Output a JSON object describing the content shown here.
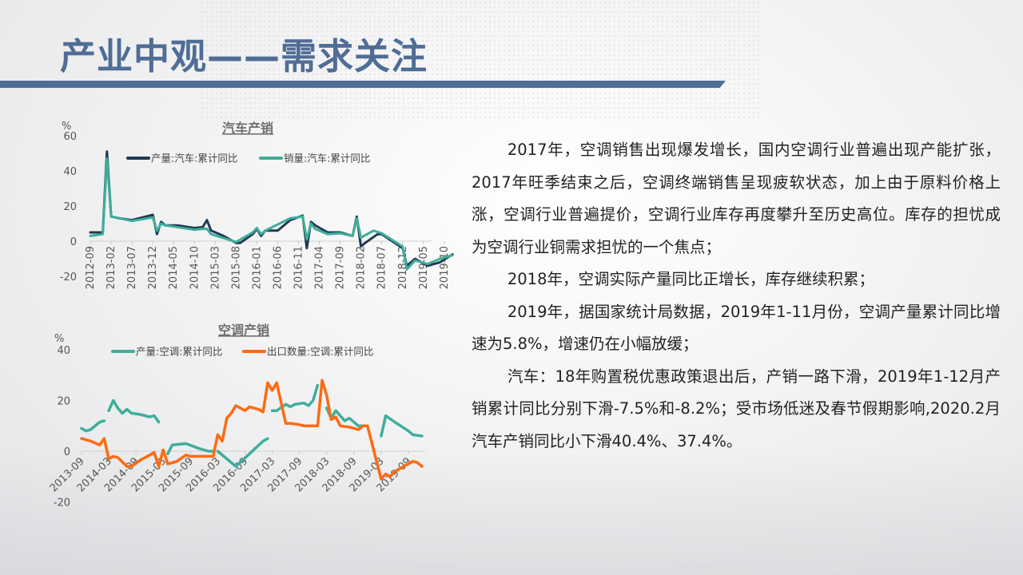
{
  "title": "产业中观——需求关注",
  "colors": {
    "title": "#4f6d95",
    "auto_production": "#1f3a56",
    "auto_sales": "#3fae9a",
    "ac_production": "#3fae9a",
    "ac_export": "#ff6a10"
  },
  "paragraphs": [
    "2017年，空调销售出现爆发增长，国内空调行业普遍出现产能扩张，2017年旺季结束之后，空调终端销售呈现疲软状态，加上由于原料价格上涨，空调行业普遍提价，空调行业库存再度攀升至历史高位。库存的担忧成为空调行业铜需求担忧的一个焦点；",
    "2018年，空调实际产量同比正增长，库存继续积累；",
    "2019年，据国家统计局数据，2019年1-11月份，空调产量累计同比增速为5.8%，增速仍在小幅放缓；",
    "汽车：18年购置税优惠政策退出后，产销一路下滑，2019年1-12月产销累计同比分别下滑-7.5%和-8.2%；受市场低迷及春节假期影响,2020.2月汽车产销同比小下滑40.4%、37.4%。"
  ],
  "chart_data": [
    {
      "type": "line",
      "title": "汽车产销",
      "ylabel": "%",
      "ylim": [
        -20,
        60
      ],
      "yticks": [
        "60",
        "40",
        "20",
        "0",
        "-20"
      ],
      "xticks": [
        "2012-09",
        "2013-02",
        "2013-07",
        "2013-12",
        "2014-05",
        "2014-10",
        "2015-03",
        "2015-08",
        "2016-01",
        "2016-06",
        "2016-11",
        "2017-04",
        "2017-09",
        "2018-02",
        "2018-07",
        "2018-12",
        "2019-05",
        "2019-10"
      ],
      "legend": "top",
      "series": [
        {
          "name": "产量:汽车:累计同比",
          "color": "#1f3a56",
          "points": [
            [
              "2012-09",
              5
            ],
            [
              "2012-12",
              5
            ],
            [
              "2013-01",
              51
            ],
            [
              "2013-02",
              14
            ],
            [
              "2013-04",
              13
            ],
            [
              "2013-07",
              12
            ],
            [
              "2013-12",
              15
            ],
            [
              "2014-01",
              4
            ],
            [
              "2014-02",
              11
            ],
            [
              "2014-03",
              9
            ],
            [
              "2014-06",
              9
            ],
            [
              "2014-10",
              7.5
            ],
            [
              "2014-12",
              8
            ],
            [
              "2015-01",
              12
            ],
            [
              "2015-02",
              6
            ],
            [
              "2015-05",
              3
            ],
            [
              "2015-08",
              -1
            ],
            [
              "2015-09",
              -1
            ],
            [
              "2015-12",
              4
            ],
            [
              "2016-01",
              7
            ],
            [
              "2016-02",
              3
            ],
            [
              "2016-03",
              6
            ],
            [
              "2016-06",
              6
            ],
            [
              "2016-09",
              12
            ],
            [
              "2016-12",
              14.5
            ],
            [
              "2017-01",
              -4
            ],
            [
              "2017-02",
              11
            ],
            [
              "2017-03",
              9
            ],
            [
              "2017-06",
              5
            ],
            [
              "2017-09",
              5
            ],
            [
              "2017-12",
              3
            ],
            [
              "2018-01",
              14
            ],
            [
              "2018-02",
              -3
            ],
            [
              "2018-03",
              -1
            ],
            [
              "2018-06",
              4
            ],
            [
              "2018-07",
              4
            ],
            [
              "2018-12",
              -4
            ],
            [
              "2019-01",
              -14
            ],
            [
              "2019-03",
              -10
            ],
            [
              "2019-06",
              -14
            ],
            [
              "2019-09",
              -12
            ],
            [
              "2019-12",
              -7.5
            ]
          ]
        },
        {
          "name": "销量:汽车:累计同比",
          "color": "#3fae9a",
          "points": [
            [
              "2012-09",
              3
            ],
            [
              "2012-12",
              4
            ],
            [
              "2013-01",
              47
            ],
            [
              "2013-02",
              14
            ],
            [
              "2013-07",
              11.5
            ],
            [
              "2013-12",
              13.5
            ],
            [
              "2014-01",
              6
            ],
            [
              "2014-02",
              10
            ],
            [
              "2014-03",
              9
            ],
            [
              "2014-10",
              6.5
            ],
            [
              "2014-12",
              7
            ],
            [
              "2015-01",
              7
            ],
            [
              "2015-02",
              4
            ],
            [
              "2015-08",
              -0.5
            ],
            [
              "2015-12",
              5
            ],
            [
              "2016-01",
              7.5
            ],
            [
              "2016-02",
              4
            ],
            [
              "2016-03",
              6
            ],
            [
              "2016-09",
              13
            ],
            [
              "2016-12",
              14
            ],
            [
              "2017-01",
              1
            ],
            [
              "2017-02",
              10
            ],
            [
              "2017-03",
              7
            ],
            [
              "2017-06",
              4
            ],
            [
              "2017-09",
              4.5
            ],
            [
              "2017-12",
              3
            ],
            [
              "2018-01",
              13
            ],
            [
              "2018-02",
              2
            ],
            [
              "2018-05",
              6
            ],
            [
              "2018-07",
              4.5
            ],
            [
              "2018-12",
              -3
            ],
            [
              "2019-01",
              -16
            ],
            [
              "2019-03",
              -11
            ],
            [
              "2019-06",
              -13
            ],
            [
              "2019-09",
              -10
            ],
            [
              "2019-12",
              -8
            ]
          ]
        }
      ]
    },
    {
      "type": "line",
      "title": "空调产销",
      "ylabel": "%",
      "ylim": [
        -20,
        40
      ],
      "yticks": [
        "40",
        "20",
        "0",
        "-20"
      ],
      "xticks": [
        "2013-09",
        "2014-03",
        "2014-09",
        "2015-03",
        "2015-09",
        "2016-03",
        "2016-09",
        "2017-03",
        "2017-09",
        "2018-03",
        "2018-09",
        "2019-03",
        "2019-09"
      ],
      "legend": "top",
      "series": [
        {
          "name": "产量:空调:累计同比",
          "color": "#3fae9a",
          "segments": [
            [
              [
                "2013-09",
                9
              ],
              [
                "2013-10",
                8
              ],
              [
                "2013-11",
                8.5
              ],
              [
                "2014-01",
                11.5
              ],
              [
                "2014-02",
                12
              ]
            ],
            [
              [
                "2014-03",
                16
              ],
              [
                "2014-04",
                20
              ],
              [
                "2014-05",
                17
              ],
              [
                "2014-06",
                15
              ],
              [
                "2014-07",
                16.5
              ],
              [
                "2014-08",
                15
              ],
              [
                "2014-10",
                14.5
              ],
              [
                "2014-12",
                13.5
              ],
              [
                "2015-01",
                14
              ],
              [
                "2015-02",
                11.5
              ]
            ],
            [
              [
                "2015-04",
                -1
              ],
              [
                "2015-05",
                2.5
              ],
              [
                "2015-08",
                3
              ],
              [
                "2015-11",
                1
              ],
              [
                "2016-01",
                0
              ],
              [
                "2016-02",
                0
              ]
            ],
            [
              [
                "2016-03",
                0
              ],
              [
                "2016-05",
                -3
              ],
              [
                "2016-07",
                -6
              ],
              [
                "2016-10",
                -1
              ],
              [
                "2017-01",
                4
              ],
              [
                "2017-02",
                5
              ]
            ],
            [
              [
                "2017-03",
                16
              ],
              [
                "2017-04",
                16
              ],
              [
                "2017-06",
                18.5
              ],
              [
                "2017-07",
                17.5
              ],
              [
                "2017-08",
                18.5
              ],
              [
                "2017-10",
                19
              ],
              [
                "2017-11",
                18
              ],
              [
                "2017-12",
                20
              ],
              [
                "2018-01",
                26
              ]
            ],
            [
              [
                "2018-03",
                17
              ],
              [
                "2018-04",
                13
              ],
              [
                "2018-05",
                16
              ],
              [
                "2018-07",
                12
              ],
              [
                "2018-08",
                13
              ],
              [
                "2018-10",
                10
              ],
              [
                "2018-11",
                10
              ]
            ],
            [
              [
                "2019-03",
                6
              ],
              [
                "2019-04",
                14
              ],
              [
                "2019-06",
                11.5
              ],
              [
                "2019-09",
                8
              ],
              [
                "2019-10",
                6.5
              ],
              [
                "2019-12",
                6
              ]
            ]
          ]
        },
        {
          "name": "出口数量:空调:累计同比",
          "color": "#ff6a10",
          "segments": [
            [
              [
                "2013-09",
                5
              ],
              [
                "2013-11",
                4
              ],
              [
                "2014-01",
                2.5
              ],
              [
                "2014-02",
                5
              ],
              [
                "2014-03",
                -3
              ],
              [
                "2014-04",
                -2
              ],
              [
                "2014-05",
                -2.5
              ],
              [
                "2014-07",
                -6
              ],
              [
                "2014-08",
                -6
              ],
              [
                "2014-10",
                -3.5
              ],
              [
                "2014-12",
                -1.5
              ],
              [
                "2015-01",
                -0.5
              ],
              [
                "2015-02",
                -6
              ],
              [
                "2015-03",
                0.5
              ],
              [
                "2015-04",
                -5
              ],
              [
                "2015-06",
                -4
              ],
              [
                "2015-08",
                -1.5
              ],
              [
                "2015-09",
                -2
              ],
              [
                "2016-01",
                -2
              ],
              [
                "2016-02",
                -2
              ],
              [
                "2016-03",
                6.5
              ],
              [
                "2016-04",
                4
              ],
              [
                "2016-05",
                13
              ],
              [
                "2016-06",
                15
              ],
              [
                "2016-07",
                18
              ],
              [
                "2016-08",
                17
              ],
              [
                "2016-09",
                16
              ],
              [
                "2016-10",
                17.5
              ],
              [
                "2016-12",
                16.5
              ],
              [
                "2017-01",
                15.5
              ],
              [
                "2017-02",
                27
              ],
              [
                "2017-03",
                24
              ],
              [
                "2017-04",
                27
              ],
              [
                "2017-06",
                11
              ],
              [
                "2017-07",
                11
              ],
              [
                "2017-09",
                10.5
              ],
              [
                "2017-10",
                10
              ],
              [
                "2017-12",
                10
              ],
              [
                "2018-01",
                10
              ],
              [
                "2018-02",
                28
              ],
              [
                "2018-03",
                22
              ],
              [
                "2018-04",
                12.5
              ],
              [
                "2018-05",
                13.5
              ],
              [
                "2018-06",
                10
              ],
              [
                "2018-08",
                9.5
              ],
              [
                "2018-10",
                8.5
              ],
              [
                "2018-11",
                10
              ],
              [
                "2018-12",
                10
              ],
              [
                "2019-03",
                -11
              ],
              [
                "2019-04",
                -9
              ],
              [
                "2019-05",
                -10
              ],
              [
                "2019-06",
                -8
              ],
              [
                "2019-08",
                -6
              ],
              [
                "2019-10",
                -4
              ],
              [
                "2019-11",
                -4.5
              ],
              [
                "2019-12",
                -6
              ]
            ]
          ]
        }
      ]
    }
  ]
}
